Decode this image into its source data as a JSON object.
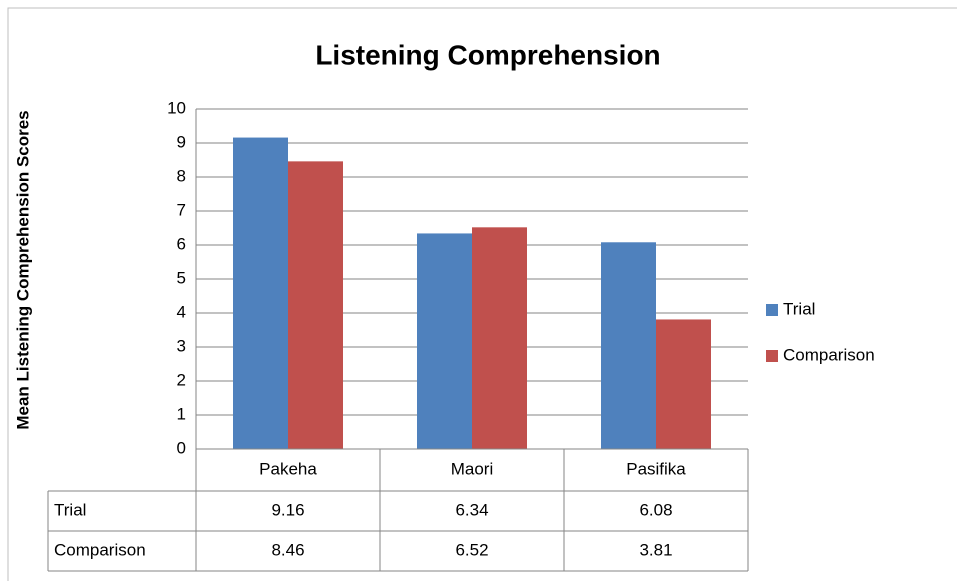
{
  "chart_data": {
    "type": "bar",
    "title": "Listening Comprehension",
    "y_label": "Mean Listening Comprehension Scores",
    "categories": [
      "Pakeha",
      "Maori",
      "Pasifika"
    ],
    "series": [
      {
        "name": "Trial",
        "color": "#4f81bd",
        "values": [
          9.16,
          6.34,
          6.08
        ]
      },
      {
        "name": "Comparison",
        "color": "#c0504d",
        "values": [
          8.46,
          6.52,
          3.81
        ]
      }
    ],
    "ylim": [
      0,
      10
    ],
    "yticks": [
      0,
      1,
      2,
      3,
      4,
      5,
      6,
      7,
      8,
      9,
      10
    ],
    "grid": true,
    "legend": "right",
    "data_table": true
  }
}
